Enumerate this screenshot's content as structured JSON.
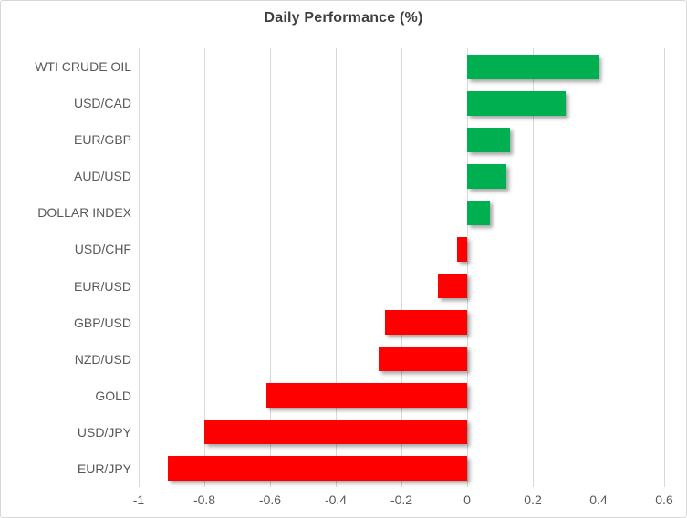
{
  "chart_data": {
    "type": "bar",
    "orientation": "horizontal",
    "title": "Daily Performance (%)",
    "xlabel": "",
    "ylabel": "",
    "categories": [
      "WTI CRUDE OIL",
      "USD/CAD",
      "EUR/GBP",
      "AUD/USD",
      "DOLLAR INDEX",
      "USD/CHF",
      "EUR/USD",
      "GBP/USD",
      "NZD/USD",
      "GOLD",
      "USD/JPY",
      "EUR/JPY"
    ],
    "values": [
      0.4,
      0.3,
      0.13,
      0.12,
      0.07,
      -0.03,
      -0.09,
      -0.25,
      -0.27,
      -0.61,
      -0.8,
      -0.91
    ],
    "xlim": [
      -1,
      0.6
    ],
    "xticks": [
      -1,
      -0.8,
      -0.6,
      -0.4,
      -0.2,
      0,
      0.2,
      0.4,
      0.6
    ],
    "xtick_labels": [
      "-1",
      "-0.8",
      "-0.6",
      "-0.4",
      "-0.2",
      "0",
      "0.2",
      "0.4",
      "0.6"
    ],
    "grid": "vertical-only",
    "legend": "none"
  },
  "colors": {
    "positive_bar": "#00B050",
    "negative_bar": "#FF0000",
    "gridline": "#D9D9D9",
    "axis_text": "#595959",
    "title_text": "#3F3F3F",
    "chart_border": "#D7D7D7",
    "background": "#FFFFFF"
  }
}
